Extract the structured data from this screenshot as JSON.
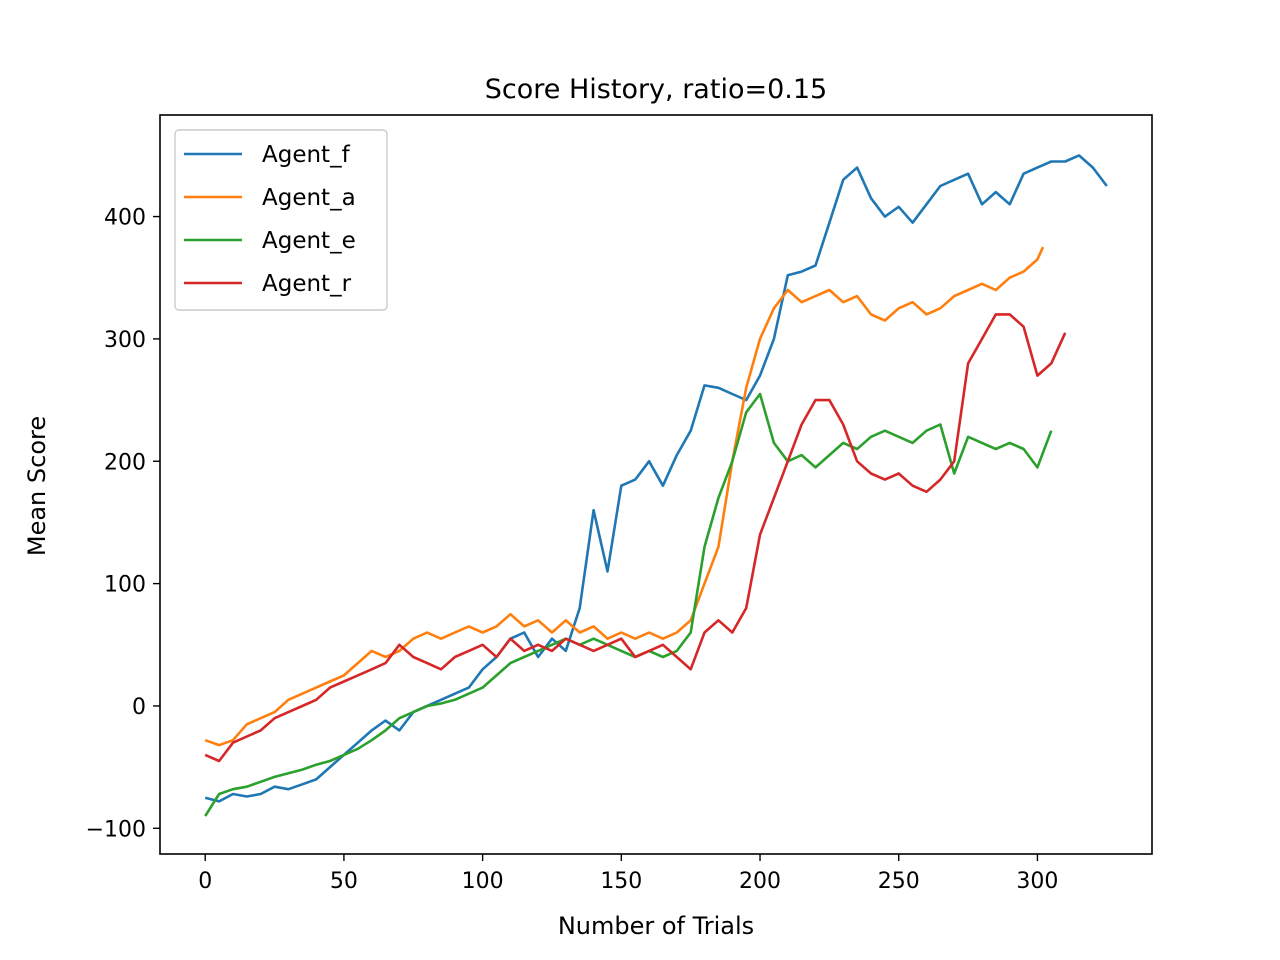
{
  "chart_data": {
    "type": "line",
    "title": "Score History, ratio=0.15",
    "xlabel": "Number of Trials",
    "ylabel": "Mean Score",
    "xlim": [
      -16.3,
      341.3
    ],
    "ylim": [
      -121,
      483
    ],
    "xticks": [
      0,
      50,
      100,
      150,
      200,
      250,
      300
    ],
    "yticks": [
      -100,
      0,
      100,
      200,
      300,
      400
    ],
    "xtick_labels": [
      "0",
      "50",
      "100",
      "150",
      "200",
      "250",
      "300"
    ],
    "ytick_labels": [
      "−100",
      "0",
      "100",
      "200",
      "300",
      "400"
    ],
    "grid": false,
    "legend_position": "top-left",
    "series": [
      {
        "name": "Agent_f",
        "color": "#1f77b4",
        "points": [
          [
            0,
            -75
          ],
          [
            5,
            -78
          ],
          [
            10,
            -72
          ],
          [
            15,
            -74
          ],
          [
            20,
            -72
          ],
          [
            25,
            -66
          ],
          [
            30,
            -68
          ],
          [
            35,
            -64
          ],
          [
            40,
            -60
          ],
          [
            45,
            -50
          ],
          [
            50,
            -40
          ],
          [
            55,
            -30
          ],
          [
            60,
            -20
          ],
          [
            65,
            -12
          ],
          [
            70,
            -20
          ],
          [
            75,
            -5
          ],
          [
            80,
            0
          ],
          [
            85,
            5
          ],
          [
            90,
            10
          ],
          [
            95,
            15
          ],
          [
            100,
            30
          ],
          [
            105,
            40
          ],
          [
            110,
            55
          ],
          [
            115,
            60
          ],
          [
            120,
            40
          ],
          [
            125,
            55
          ],
          [
            130,
            45
          ],
          [
            135,
            80
          ],
          [
            140,
            160
          ],
          [
            145,
            110
          ],
          [
            150,
            180
          ],
          [
            155,
            185
          ],
          [
            160,
            200
          ],
          [
            165,
            180
          ],
          [
            170,
            205
          ],
          [
            175,
            225
          ],
          [
            180,
            262
          ],
          [
            185,
            260
          ],
          [
            190,
            255
          ],
          [
            195,
            250
          ],
          [
            200,
            270
          ],
          [
            205,
            300
          ],
          [
            210,
            352
          ],
          [
            215,
            355
          ],
          [
            220,
            360
          ],
          [
            225,
            395
          ],
          [
            230,
            430
          ],
          [
            235,
            440
          ],
          [
            240,
            415
          ],
          [
            245,
            400
          ],
          [
            250,
            408
          ],
          [
            255,
            395
          ],
          [
            260,
            410
          ],
          [
            265,
            425
          ],
          [
            270,
            430
          ],
          [
            275,
            435
          ],
          [
            280,
            410
          ],
          [
            285,
            420
          ],
          [
            290,
            410
          ],
          [
            295,
            435
          ],
          [
            300,
            440
          ],
          [
            305,
            445
          ],
          [
            310,
            445
          ],
          [
            315,
            450
          ],
          [
            320,
            440
          ],
          [
            325,
            425
          ]
        ]
      },
      {
        "name": "Agent_a",
        "color": "#ff7f0e",
        "points": [
          [
            0,
            -28
          ],
          [
            5,
            -32
          ],
          [
            10,
            -28
          ],
          [
            15,
            -15
          ],
          [
            20,
            -10
          ],
          [
            25,
            -5
          ],
          [
            30,
            5
          ],
          [
            35,
            10
          ],
          [
            40,
            15
          ],
          [
            45,
            20
          ],
          [
            50,
            25
          ],
          [
            55,
            35
          ],
          [
            60,
            45
          ],
          [
            65,
            40
          ],
          [
            70,
            45
          ],
          [
            75,
            55
          ],
          [
            80,
            60
          ],
          [
            85,
            55
          ],
          [
            90,
            60
          ],
          [
            95,
            65
          ],
          [
            100,
            60
          ],
          [
            105,
            65
          ],
          [
            110,
            75
          ],
          [
            115,
            65
          ],
          [
            120,
            70
          ],
          [
            125,
            60
          ],
          [
            130,
            70
          ],
          [
            135,
            60
          ],
          [
            140,
            65
          ],
          [
            145,
            55
          ],
          [
            150,
            60
          ],
          [
            155,
            55
          ],
          [
            160,
            60
          ],
          [
            165,
            55
          ],
          [
            170,
            60
          ],
          [
            175,
            70
          ],
          [
            180,
            100
          ],
          [
            185,
            130
          ],
          [
            190,
            200
          ],
          [
            195,
            260
          ],
          [
            200,
            300
          ],
          [
            205,
            325
          ],
          [
            210,
            340
          ],
          [
            215,
            330
          ],
          [
            220,
            335
          ],
          [
            225,
            340
          ],
          [
            230,
            330
          ],
          [
            235,
            335
          ],
          [
            240,
            320
          ],
          [
            245,
            315
          ],
          [
            250,
            325
          ],
          [
            255,
            330
          ],
          [
            260,
            320
          ],
          [
            265,
            325
          ],
          [
            270,
            335
          ],
          [
            275,
            340
          ],
          [
            280,
            345
          ],
          [
            285,
            340
          ],
          [
            290,
            350
          ],
          [
            295,
            355
          ],
          [
            300,
            365
          ],
          [
            302,
            375
          ]
        ]
      },
      {
        "name": "Agent_e",
        "color": "#2ca02c",
        "points": [
          [
            0,
            -90
          ],
          [
            5,
            -72
          ],
          [
            10,
            -68
          ],
          [
            15,
            -66
          ],
          [
            20,
            -62
          ],
          [
            25,
            -58
          ],
          [
            30,
            -55
          ],
          [
            35,
            -52
          ],
          [
            40,
            -48
          ],
          [
            45,
            -45
          ],
          [
            50,
            -40
          ],
          [
            55,
            -35
          ],
          [
            60,
            -28
          ],
          [
            65,
            -20
          ],
          [
            70,
            -10
          ],
          [
            75,
            -5
          ],
          [
            80,
            0
          ],
          [
            85,
            2
          ],
          [
            90,
            5
          ],
          [
            95,
            10
          ],
          [
            100,
            15
          ],
          [
            105,
            25
          ],
          [
            110,
            35
          ],
          [
            115,
            40
          ],
          [
            120,
            45
          ],
          [
            125,
            50
          ],
          [
            130,
            55
          ],
          [
            135,
            50
          ],
          [
            140,
            55
          ],
          [
            145,
            50
          ],
          [
            150,
            45
          ],
          [
            155,
            40
          ],
          [
            160,
            45
          ],
          [
            165,
            40
          ],
          [
            170,
            45
          ],
          [
            175,
            60
          ],
          [
            180,
            130
          ],
          [
            185,
            170
          ],
          [
            190,
            200
          ],
          [
            195,
            240
          ],
          [
            200,
            255
          ],
          [
            205,
            215
          ],
          [
            210,
            200
          ],
          [
            215,
            205
          ],
          [
            220,
            195
          ],
          [
            225,
            205
          ],
          [
            230,
            215
          ],
          [
            235,
            210
          ],
          [
            240,
            220
          ],
          [
            245,
            225
          ],
          [
            250,
            220
          ],
          [
            255,
            215
          ],
          [
            260,
            225
          ],
          [
            265,
            230
          ],
          [
            270,
            190
          ],
          [
            275,
            220
          ],
          [
            280,
            215
          ],
          [
            285,
            210
          ],
          [
            290,
            215
          ],
          [
            295,
            210
          ],
          [
            300,
            195
          ],
          [
            305,
            225
          ]
        ]
      },
      {
        "name": "Agent_r",
        "color": "#d62728",
        "points": [
          [
            0,
            -40
          ],
          [
            5,
            -45
          ],
          [
            10,
            -30
          ],
          [
            15,
            -25
          ],
          [
            20,
            -20
          ],
          [
            25,
            -10
          ],
          [
            30,
            -5
          ],
          [
            35,
            0
          ],
          [
            40,
            5
          ],
          [
            45,
            15
          ],
          [
            50,
            20
          ],
          [
            55,
            25
          ],
          [
            60,
            30
          ],
          [
            65,
            35
          ],
          [
            70,
            50
          ],
          [
            75,
            40
          ],
          [
            80,
            35
          ],
          [
            85,
            30
          ],
          [
            90,
            40
          ],
          [
            95,
            45
          ],
          [
            100,
            50
          ],
          [
            105,
            40
          ],
          [
            110,
            55
          ],
          [
            115,
            45
          ],
          [
            120,
            50
          ],
          [
            125,
            45
          ],
          [
            130,
            55
          ],
          [
            135,
            50
          ],
          [
            140,
            45
          ],
          [
            145,
            50
          ],
          [
            150,
            55
          ],
          [
            155,
            40
          ],
          [
            160,
            45
          ],
          [
            165,
            50
          ],
          [
            170,
            40
          ],
          [
            175,
            30
          ],
          [
            180,
            60
          ],
          [
            185,
            70
          ],
          [
            190,
            60
          ],
          [
            195,
            80
          ],
          [
            200,
            140
          ],
          [
            205,
            170
          ],
          [
            210,
            200
          ],
          [
            215,
            230
          ],
          [
            220,
            250
          ],
          [
            225,
            250
          ],
          [
            230,
            230
          ],
          [
            235,
            200
          ],
          [
            240,
            190
          ],
          [
            245,
            185
          ],
          [
            250,
            190
          ],
          [
            255,
            180
          ],
          [
            260,
            175
          ],
          [
            265,
            185
          ],
          [
            270,
            200
          ],
          [
            275,
            280
          ],
          [
            280,
            300
          ],
          [
            285,
            320
          ],
          [
            290,
            320
          ],
          [
            295,
            310
          ],
          [
            300,
            270
          ],
          [
            305,
            280
          ],
          [
            310,
            305
          ]
        ]
      }
    ]
  }
}
